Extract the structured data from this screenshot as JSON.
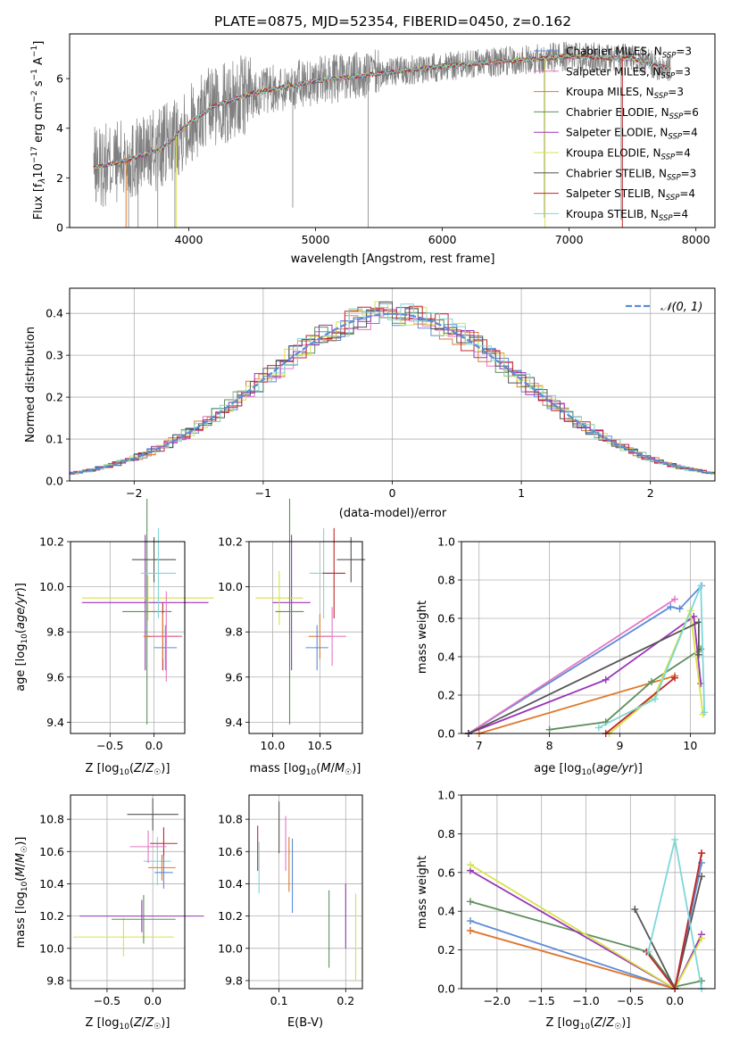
{
  "chart_data": [
    {
      "id": "spectrum",
      "type": "line",
      "title": "PLATE=0875, MJD=52354, FIBERID=0450, z=0.162",
      "xlabel": "wavelength [Angstrom, rest frame]",
      "ylabel": "Flux [f_λ 10^-17 erg cm^-2 s^-1 A^-1]",
      "xlim": [
        3060,
        8150
      ],
      "ylim": [
        0,
        7.8
      ],
      "xticks": [
        4000,
        5000,
        6000,
        7000,
        8000
      ],
      "yticks": [
        0,
        2,
        4,
        6
      ],
      "legend_position": "right",
      "legend": [
        {
          "label": "Chabrier MILES, N_SSP=3",
          "color": "#5b8bd8"
        },
        {
          "label": "Salpeter MILES, N_SSP=3",
          "color": "#e377c2"
        },
        {
          "label": "Kroupa MILES, N_SSP=3",
          "color": "#dd7a2c"
        },
        {
          "label": "Chabrier ELODIE, N_SSP=6",
          "color": "#5f8f5c"
        },
        {
          "label": "Salpeter ELODIE, N_SSP=4",
          "color": "#9a34b8"
        },
        {
          "label": "Kroupa ELODIE, N_SSP=4",
          "color": "#d8e24a"
        },
        {
          "label": "Chabrier STELIB, N_SSP=3",
          "color": "#555555"
        },
        {
          "label": "Salpeter STELIB, N_SSP=4",
          "color": "#c0282c"
        },
        {
          "label": "Kroupa STELIB, N_SSP=4",
          "color": "#7fd6d8"
        }
      ],
      "continuum": {
        "x": [
          3250,
          3500,
          3800,
          4000,
          4200,
          4500,
          5000,
          5500,
          6000,
          6500,
          7000,
          7500,
          7800
        ],
        "y": [
          2.4,
          2.7,
          3.2,
          4.2,
          4.9,
          5.4,
          5.9,
          6.2,
          6.5,
          6.7,
          6.9,
          6.8,
          6.4
        ]
      }
    },
    {
      "id": "residuals",
      "type": "bar",
      "xlabel": "(data-model)/error",
      "ylabel": "Normed distribution",
      "xlim": [
        -2.5,
        2.5
      ],
      "ylim": [
        0,
        0.46
      ],
      "xticks": [
        -2,
        -1,
        0,
        1,
        2
      ],
      "yticks": [
        0.0,
        0.1,
        0.2,
        0.3,
        0.4
      ],
      "legend": [
        {
          "label": "N(0,1)",
          "color": "#5b8bd8"
        }
      ]
    },
    {
      "id": "age-vs-Z",
      "type": "scatter",
      "xlabel": "Z [log10(Z/Z☉)]",
      "ylabel": "age  [log10(age/yr)]",
      "xlim": [
        -0.95,
        0.35
      ],
      "ylim": [
        9.35,
        10.2
      ],
      "xticks": [
        -0.5,
        0.0
      ],
      "yticks": [
        9.4,
        9.6,
        9.8,
        10.0,
        10.2
      ],
      "points": [
        {
          "x": -0.1,
          "y": 9.93,
          "xerr": 0.72,
          "yerr": 0.3,
          "color": "#9a34b8"
        },
        {
          "x": -0.07,
          "y": 9.95,
          "xerr": 0.75,
          "yerr": 0.1,
          "color": "#d8e24a"
        },
        {
          "x": -0.08,
          "y": 9.89,
          "xerr": 0.28,
          "yerr": 0.5,
          "color": "#5f8f5c"
        },
        {
          "x": 0.0,
          "y": 10.12,
          "xerr": 0.25,
          "yerr": 0.1,
          "color": "#555555"
        },
        {
          "x": 0.05,
          "y": 10.06,
          "xerr": 0.2,
          "yerr": 0.2,
          "color": "#7fd6d8"
        },
        {
          "x": 0.1,
          "y": 9.78,
          "xerr": 0.18,
          "yerr": 0.15,
          "color": "#c0282c"
        },
        {
          "x": 0.1,
          "y": 9.78,
          "xerr": 0.22,
          "yerr": 0.1,
          "color": "#dd7a2c"
        },
        {
          "x": 0.13,
          "y": 9.73,
          "xerr": 0.13,
          "yerr": 0.1,
          "color": "#5b8bd8"
        },
        {
          "x": 0.14,
          "y": 9.78,
          "xerr": 0.18,
          "yerr": 0.2,
          "color": "#e377c2"
        }
      ]
    },
    {
      "id": "age-vs-mass",
      "type": "scatter",
      "xlabel": "mass [log10(M/M☉)]",
      "ylabel": "",
      "xlim": [
        9.75,
        10.95
      ],
      "ylim": [
        9.35,
        10.2
      ],
      "xticks": [
        10.0,
        10.5
      ],
      "yticks": [
        9.4,
        9.6,
        9.8,
        10.0,
        10.2
      ],
      "points": [
        {
          "x": 10.2,
          "y": 9.93,
          "xerr": 0.2,
          "yerr": 0.3,
          "color": "#9a34b8"
        },
        {
          "x": 10.07,
          "y": 9.95,
          "xerr": 0.25,
          "yerr": 0.12,
          "color": "#d8e24a"
        },
        {
          "x": 10.18,
          "y": 9.89,
          "xerr": 0.15,
          "yerr": 0.5,
          "color": "#5f8f5c"
        },
        {
          "x": 10.83,
          "y": 10.12,
          "xerr": 0.15,
          "yerr": 0.1,
          "color": "#555555"
        },
        {
          "x": 10.54,
          "y": 10.06,
          "xerr": 0.15,
          "yerr": 0.2,
          "color": "#7fd6d8"
        },
        {
          "x": 10.65,
          "y": 10.06,
          "xerr": 0.12,
          "yerr": 0.2,
          "color": "#c0282c"
        },
        {
          "x": 10.5,
          "y": 9.78,
          "xerr": 0.12,
          "yerr": 0.1,
          "color": "#dd7a2c"
        },
        {
          "x": 10.47,
          "y": 9.73,
          "xerr": 0.12,
          "yerr": 0.1,
          "color": "#5b8bd8"
        },
        {
          "x": 10.63,
          "y": 9.78,
          "xerr": 0.15,
          "yerr": 0.13,
          "color": "#e377c2"
        }
      ]
    },
    {
      "id": "weight-vs-age",
      "type": "line",
      "xlabel": "age  [log10(age/yr)]",
      "ylabel": "mass weight",
      "xlim": [
        6.75,
        10.35
      ],
      "ylim": [
        0,
        1.0
      ],
      "xticks": [
        7,
        8,
        9,
        10
      ],
      "yticks": [
        0.0,
        0.2,
        0.4,
        0.6,
        0.8,
        1.0
      ],
      "series": [
        {
          "color": "#5b8bd8",
          "x": [
            6.85,
            9.72,
            9.85,
            10.16
          ],
          "y": [
            0.0,
            0.66,
            0.65,
            0.77
          ]
        },
        {
          "color": "#e377c2",
          "x": [
            6.85,
            9.78
          ],
          "y": [
            0.0,
            0.7
          ]
        },
        {
          "color": "#dd7a2c",
          "x": [
            7.0,
            9.78
          ],
          "y": [
            0.0,
            0.3
          ]
        },
        {
          "color": "#5f8f5c",
          "x": [
            8.0,
            8.8,
            9.45,
            10.15
          ],
          "y": [
            0.02,
            0.06,
            0.27,
            0.44
          ]
        },
        {
          "color": "#9a34b8",
          "x": [
            6.85,
            8.8,
            10.05,
            10.15
          ],
          "y": [
            0.0,
            0.28,
            0.61,
            0.26
          ]
        },
        {
          "color": "#d8e24a",
          "x": [
            8.85,
            9.5,
            10.0,
            10.18
          ],
          "y": [
            0.0,
            0.2,
            0.64,
            0.1
          ]
        },
        {
          "color": "#555555",
          "x": [
            6.85,
            10.12,
            10.12
          ],
          "y": [
            0.0,
            0.58,
            0.41
          ]
        },
        {
          "color": "#c0282c",
          "x": [
            8.8,
            9.78
          ],
          "y": [
            0.0,
            0.29
          ]
        },
        {
          "color": "#7fd6d8",
          "x": [
            8.7,
            9.5,
            10.15,
            10.2
          ],
          "y": [
            0.03,
            0.18,
            0.77,
            0.11
          ]
        }
      ]
    },
    {
      "id": "mass-vs-Z",
      "type": "scatter",
      "xlabel": "Z [log10(Z/Z☉)]",
      "ylabel": "mass [log10(M/M☉)]",
      "xlim": [
        -0.9,
        0.35
      ],
      "ylim": [
        9.75,
        10.95
      ],
      "xticks": [
        -0.5,
        0.0
      ],
      "yticks": [
        9.8,
        10.0,
        10.2,
        10.4,
        10.6,
        10.8
      ],
      "points": [
        {
          "x": -0.12,
          "y": 10.2,
          "xerr": 0.68,
          "yerr": 0.1,
          "color": "#9a34b8"
        },
        {
          "x": -0.32,
          "y": 10.07,
          "xerr": 0.55,
          "yerr": 0.12,
          "color": "#d8e24a"
        },
        {
          "x": -0.1,
          "y": 10.18,
          "xerr": 0.35,
          "yerr": 0.15,
          "color": "#5f8f5c"
        },
        {
          "x": 0.0,
          "y": 10.83,
          "xerr": 0.28,
          "yerr": 0.1,
          "color": "#555555"
        },
        {
          "x": 0.05,
          "y": 10.54,
          "xerr": 0.15,
          "yerr": 0.15,
          "color": "#7fd6d8"
        },
        {
          "x": 0.12,
          "y": 10.65,
          "xerr": 0.15,
          "yerr": 0.1,
          "color": "#c0282c"
        },
        {
          "x": 0.1,
          "y": 10.5,
          "xerr": 0.15,
          "yerr": 0.08,
          "color": "#dd7a2c"
        },
        {
          "x": 0.12,
          "y": 10.47,
          "xerr": 0.1,
          "yerr": 0.1,
          "color": "#5b8bd8"
        },
        {
          "x": -0.05,
          "y": 10.63,
          "xerr": 0.2,
          "yerr": 0.1,
          "color": "#e377c2"
        }
      ]
    },
    {
      "id": "mass-vs-ebv",
      "type": "scatter",
      "xlabel": "E(B-V)",
      "ylabel": "",
      "xlim": [
        0.055,
        0.225
      ],
      "ylim": [
        9.75,
        10.95
      ],
      "xticks": [
        0.1,
        0.2
      ],
      "yticks": [
        9.8,
        10.0,
        10.2,
        10.4,
        10.6,
        10.8
      ],
      "points": [
        {
          "x": 0.068,
          "y": 10.62,
          "yerr": 0.14,
          "color": "#c0282c"
        },
        {
          "x": 0.07,
          "y": 10.5,
          "yerr": 0.16,
          "color": "#7fd6d8"
        },
        {
          "x": 0.1,
          "y": 10.75,
          "yerr": 0.16,
          "color": "#555555"
        },
        {
          "x": 0.11,
          "y": 10.65,
          "yerr": 0.17,
          "color": "#e377c2"
        },
        {
          "x": 0.115,
          "y": 10.52,
          "yerr": 0.17,
          "color": "#dd7a2c"
        },
        {
          "x": 0.12,
          "y": 10.45,
          "yerr": 0.23,
          "color": "#5b8bd8"
        },
        {
          "x": 0.175,
          "y": 10.12,
          "yerr": 0.24,
          "color": "#5f8f5c"
        },
        {
          "x": 0.2,
          "y": 10.2,
          "yerr": 0.2,
          "color": "#9a34b8"
        },
        {
          "x": 0.215,
          "y": 10.07,
          "yerr": 0.27,
          "color": "#d8e24a"
        }
      ]
    },
    {
      "id": "weight-vs-Z",
      "type": "line",
      "xlabel": "Z [log10(Z/Z☉)]",
      "ylabel": "mass weight",
      "xlim": [
        -2.4,
        0.45
      ],
      "ylim": [
        0,
        1.0
      ],
      "xticks": [
        -2.0,
        -1.5,
        -1.0,
        -0.5,
        0.0
      ],
      "yticks": [
        0.0,
        0.2,
        0.4,
        0.6,
        0.8,
        1.0
      ],
      "series": [
        {
          "color": "#5b8bd8",
          "x": [
            -2.3,
            0.0,
            0.3
          ],
          "y": [
            0.35,
            0.0,
            0.65
          ]
        },
        {
          "color": "#e377c2",
          "x": [
            -2.3,
            0.0,
            0.3
          ],
          "y": [
            0.3,
            0.0,
            0.7
          ]
        },
        {
          "color": "#dd7a2c",
          "x": [
            -2.3,
            0.0,
            0.3
          ],
          "y": [
            0.3,
            0.0,
            0.7
          ]
        },
        {
          "color": "#5f8f5c",
          "x": [
            -2.3,
            -0.3,
            0.0,
            0.3
          ],
          "y": [
            0.45,
            0.19,
            0.01,
            0.04
          ]
        },
        {
          "color": "#9a34b8",
          "x": [
            -2.3,
            0.0,
            0.3
          ],
          "y": [
            0.61,
            0.0,
            0.28
          ]
        },
        {
          "color": "#d8e24a",
          "x": [
            -2.3,
            0.0,
            0.3
          ],
          "y": [
            0.64,
            0.0,
            0.26
          ]
        },
        {
          "color": "#555555",
          "x": [
            -0.45,
            0.0,
            0.3
          ],
          "y": [
            0.41,
            0.0,
            0.58
          ]
        },
        {
          "color": "#c0282c",
          "x": [
            -0.32,
            0.0,
            0.3
          ],
          "y": [
            0.19,
            0.0,
            0.7
          ]
        },
        {
          "color": "#7fd6d8",
          "x": [
            -0.3,
            0.0,
            0.3
          ],
          "y": [
            0.19,
            0.77,
            0.0
          ]
        }
      ]
    }
  ]
}
